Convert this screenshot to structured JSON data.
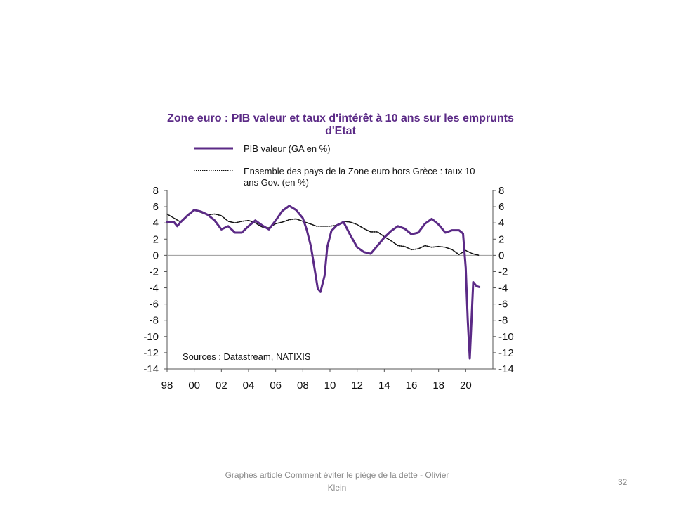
{
  "slide": {
    "footer": "Graphes article Comment  éviter le piège de la dette - Olivier Klein",
    "page_number": "32"
  },
  "chart_data": {
    "type": "line",
    "title": "Zone euro : PIB valeur et taux d'intérêt à 10 ans sur les emprunts d'Etat",
    "annotation": "Sources : Datastream, NATIXIS",
    "x_tick_labels": [
      "98",
      "00",
      "02",
      "04",
      "06",
      "08",
      "10",
      "12",
      "14",
      "16",
      "18",
      "20"
    ],
    "x_ticks": [
      1998,
      2000,
      2002,
      2004,
      2006,
      2008,
      2010,
      2012,
      2014,
      2016,
      2018,
      2020
    ],
    "xlim": [
      1998,
      2022
    ],
    "ylim": [
      -14,
      8
    ],
    "y_ticks": [
      8,
      6,
      4,
      2,
      0,
      -2,
      -4,
      -6,
      -8,
      -10,
      -12,
      -14
    ],
    "y_tick_labels": [
      "8",
      "6",
      "4",
      "2",
      "0",
      "-2",
      "-4",
      "-6",
      "-8",
      "-10",
      "-12",
      "-14"
    ],
    "zero_line": true,
    "grid": false,
    "legend_placement": "top",
    "series": [
      {
        "name": "PIB valeur (GA en %)",
        "color": "#5b2a86",
        "style": "solid",
        "x": [
          1998.0,
          1998.5,
          1998.75,
          1999.0,
          1999.5,
          2000.0,
          2000.5,
          2001.0,
          2001.5,
          2002.0,
          2002.5,
          2003.0,
          2003.5,
          2004.0,
          2004.5,
          2005.0,
          2005.5,
          2006.0,
          2006.5,
          2007.0,
          2007.5,
          2008.0,
          2008.3,
          2008.6,
          2008.9,
          2009.1,
          2009.3,
          2009.6,
          2009.8,
          2010.1,
          2010.5,
          2011.0,
          2011.5,
          2012.0,
          2012.5,
          2013.0,
          2013.5,
          2014.0,
          2014.5,
          2015.0,
          2015.5,
          2016.0,
          2016.5,
          2017.0,
          2017.5,
          2018.0,
          2018.5,
          2019.0,
          2019.5,
          2019.8,
          2020.0,
          2020.15,
          2020.3,
          2020.55,
          2020.8,
          2021.0
        ],
        "y": [
          4.1,
          4.1,
          3.6,
          4.1,
          4.9,
          5.6,
          5.4,
          5.0,
          4.3,
          3.2,
          3.6,
          2.8,
          2.8,
          3.6,
          4.3,
          3.7,
          3.2,
          4.3,
          5.5,
          6.1,
          5.6,
          4.6,
          3.1,
          1.1,
          -2.0,
          -4.1,
          -4.5,
          -2.5,
          1.0,
          3.0,
          3.7,
          4.1,
          2.5,
          1.0,
          0.4,
          0.2,
          1.2,
          2.2,
          3.0,
          3.6,
          3.3,
          2.6,
          2.8,
          3.9,
          4.5,
          3.8,
          2.8,
          3.1,
          3.1,
          2.7,
          -1.5,
          -8.0,
          -12.7,
          -3.3,
          -3.8,
          -3.9
        ]
      },
      {
        "name": "Ensemble des pays de la Zone euro hors Grèce : taux 10 ans Gov. (en %)",
        "color": "#111111",
        "style": "dotted",
        "x": [
          1998.0,
          1998.5,
          1999.0,
          1999.5,
          2000.0,
          2000.5,
          2001.0,
          2001.5,
          2002.0,
          2002.5,
          2003.0,
          2003.5,
          2004.0,
          2004.5,
          2005.0,
          2005.5,
          2006.0,
          2006.5,
          2007.0,
          2007.5,
          2008.0,
          2008.5,
          2009.0,
          2009.5,
          2010.0,
          2010.5,
          2011.0,
          2011.5,
          2012.0,
          2012.5,
          2013.0,
          2013.5,
          2014.0,
          2014.5,
          2015.0,
          2015.5,
          2016.0,
          2016.5,
          2017.0,
          2017.5,
          2018.0,
          2018.5,
          2019.0,
          2019.5,
          2020.0,
          2020.5,
          2021.0
        ],
        "y": [
          5.1,
          4.6,
          4.1,
          5.0,
          5.6,
          5.3,
          5.0,
          5.1,
          4.9,
          4.2,
          4.0,
          4.2,
          4.3,
          4.0,
          3.5,
          3.4,
          3.9,
          4.1,
          4.4,
          4.5,
          4.2,
          3.9,
          3.6,
          3.6,
          3.6,
          3.7,
          4.2,
          4.1,
          3.8,
          3.3,
          2.9,
          2.9,
          2.3,
          1.8,
          1.2,
          1.1,
          0.7,
          0.8,
          1.2,
          1.0,
          1.1,
          1.0,
          0.7,
          0.1,
          0.6,
          0.2,
          0.0
        ]
      }
    ]
  }
}
